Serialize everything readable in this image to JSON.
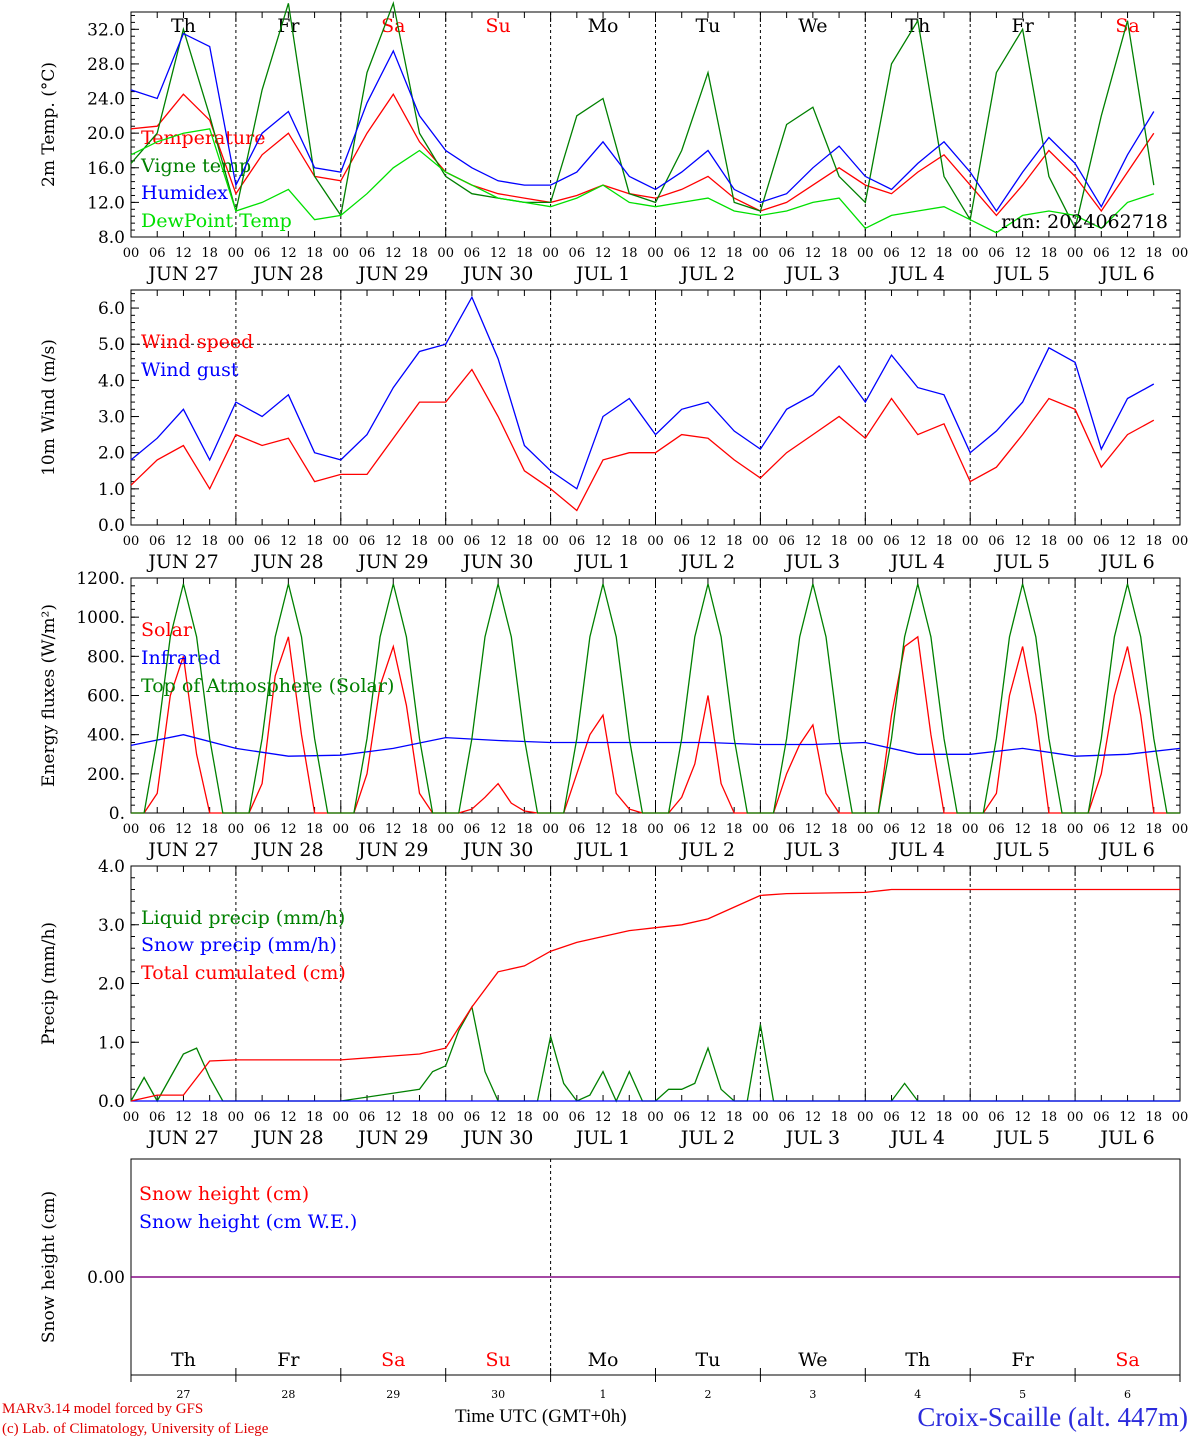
{
  "days": {
    "weekday": [
      "Th",
      "Fr",
      "Sa",
      "Su",
      "Mo",
      "Tu",
      "We",
      "Th",
      "Fr",
      "Sa"
    ],
    "weekend": [
      false,
      false,
      true,
      true,
      false,
      false,
      false,
      false,
      false,
      true
    ],
    "dates": [
      "JUN 27",
      "JUN 28",
      "JUN 29",
      "JUN 30",
      "JUL  1",
      "JUL  2",
      "JUL  3",
      "JUL  4",
      "JUL  5",
      "JUL  6"
    ],
    "day_numbers": [
      "27",
      "28",
      "29",
      "30",
      "1",
      "2",
      "3",
      "4",
      "5",
      "6"
    ],
    "hour_ticks": [
      "00",
      "06",
      "12",
      "18"
    ]
  },
  "colors": {
    "red": "#ff0000",
    "green": "#008000",
    "blue": "#0000ff",
    "lightgreen": "#00e000",
    "purple": "#800080"
  },
  "footer": {
    "credit_line1": "MARv3.14 model forced by GFS",
    "credit_line2": "(c) Lab. of Climatology, University of Liege",
    "x_title": "Time UTC (GMT+0h)",
    "station": "Croix-Scaille (alt. 447m)",
    "station_overlap": "JUL"
  },
  "chart_data": [
    {
      "type": "line",
      "ylabel": "2m Temp. (°C)",
      "ylim": [
        8.0,
        34.0
      ],
      "yticks": [
        "8.0",
        "12.0",
        "16.0",
        "20.0",
        "24.0",
        "28.0",
        "32.0"
      ],
      "annotation": "run: 2024062718",
      "series": [
        {
          "name": "Temperature",
          "color": "red",
          "x_hours": [
            0,
            6,
            12,
            18,
            24,
            30,
            36,
            42,
            48,
            54,
            60,
            66,
            72,
            78,
            84,
            90,
            96,
            102,
            108,
            114,
            120,
            126,
            132,
            138,
            144,
            150,
            156,
            162,
            168,
            174,
            180,
            186,
            192,
            198,
            204,
            210,
            216,
            222,
            228,
            234
          ],
          "values": [
            20.5,
            20.8,
            24.5,
            21.5,
            13.0,
            17.5,
            20.0,
            15.0,
            14.5,
            20.0,
            24.5,
            19.0,
            15.5,
            14.0,
            13.0,
            12.5,
            12.0,
            12.8,
            14.0,
            13.0,
            12.5,
            13.5,
            15.0,
            12.5,
            11.0,
            12.0,
            14.0,
            16.0,
            14.0,
            13.0,
            15.5,
            17.5,
            14.0,
            10.5,
            14.0,
            18.0,
            15.0,
            11.0,
            15.5,
            20.0
          ]
        },
        {
          "name": "Vigne temp",
          "color": "green",
          "x_hours": [
            0,
            6,
            12,
            18,
            24,
            30,
            36,
            42,
            48,
            54,
            60,
            66,
            72,
            78,
            84,
            90,
            96,
            102,
            108,
            114,
            120,
            126,
            132,
            138,
            144,
            150,
            156,
            162,
            168,
            174,
            180,
            186,
            192,
            198,
            204,
            210,
            216,
            222,
            228,
            234
          ],
          "values": [
            16.5,
            20.0,
            32.0,
            22.0,
            11.0,
            25.0,
            35.0,
            15.0,
            10.5,
            27.0,
            35.0,
            20.0,
            15.0,
            13.0,
            12.5,
            12.0,
            12.0,
            22.0,
            24.0,
            13.0,
            12.0,
            18.0,
            27.0,
            12.0,
            11.0,
            21.0,
            23.0,
            15.0,
            12.0,
            28.0,
            33.0,
            15.0,
            10.0,
            27.0,
            32.0,
            15.0,
            9.0,
            22.0,
            33.0,
            14.0
          ]
        },
        {
          "name": "Humidex",
          "color": "blue",
          "x_hours": [
            0,
            6,
            12,
            18,
            24,
            30,
            36,
            42,
            48,
            54,
            60,
            66,
            72,
            78,
            84,
            90,
            96,
            102,
            108,
            114,
            120,
            126,
            132,
            138,
            144,
            150,
            156,
            162,
            168,
            174,
            180,
            186,
            192,
            198,
            204,
            210,
            216,
            222,
            228,
            234
          ],
          "values": [
            25.0,
            24.0,
            31.5,
            30.0,
            14.0,
            20.0,
            22.5,
            16.0,
            15.5,
            23.5,
            29.5,
            22.0,
            18.0,
            16.0,
            14.5,
            14.0,
            14.0,
            15.5,
            19.0,
            15.0,
            13.5,
            15.5,
            18.0,
            13.5,
            12.0,
            13.0,
            16.0,
            18.5,
            15.0,
            13.5,
            16.5,
            19.0,
            15.5,
            11.0,
            15.5,
            19.5,
            16.5,
            11.5,
            17.5,
            22.5
          ]
        },
        {
          "name": "DewPoint Temp",
          "color": "lightgreen",
          "x_hours": [
            0,
            6,
            12,
            18,
            24,
            30,
            36,
            42,
            48,
            54,
            60,
            66,
            72,
            78,
            84,
            90,
            96,
            102,
            108,
            114,
            120,
            126,
            132,
            138,
            144,
            150,
            156,
            162,
            168,
            174,
            180,
            186,
            192,
            198,
            204,
            210,
            216,
            222,
            228,
            234
          ],
          "values": [
            17.5,
            19.0,
            20.0,
            20.5,
            11.0,
            12.0,
            13.5,
            10.0,
            10.5,
            13.0,
            16.0,
            18.0,
            15.5,
            14.0,
            12.5,
            12.0,
            11.5,
            12.5,
            14.0,
            12.0,
            11.5,
            12.0,
            12.5,
            11.0,
            10.5,
            11.0,
            12.0,
            12.5,
            9.0,
            10.5,
            11.0,
            11.5,
            10.0,
            8.5,
            10.5,
            11.0,
            10.5,
            9.0,
            12.0,
            13.0
          ]
        }
      ]
    },
    {
      "type": "line",
      "ylabel": "10m Wind (m/s)",
      "ylim": [
        0.0,
        6.5
      ],
      "yticks": [
        "0.0",
        "1.0",
        "2.0",
        "3.0",
        "4.0",
        "5.0",
        "6.0"
      ],
      "reference_line": 5.0,
      "series": [
        {
          "name": "Wind speed",
          "color": "red",
          "x_hours": [
            0,
            6,
            12,
            18,
            24,
            30,
            36,
            42,
            48,
            54,
            60,
            66,
            72,
            78,
            84,
            90,
            96,
            102,
            108,
            114,
            120,
            126,
            132,
            138,
            144,
            150,
            156,
            162,
            168,
            174,
            180,
            186,
            192,
            198,
            204,
            210,
            216,
            222,
            228,
            234
          ],
          "values": [
            1.1,
            1.8,
            2.2,
            1.0,
            2.5,
            2.2,
            2.4,
            1.2,
            1.4,
            1.4,
            2.4,
            3.4,
            3.4,
            4.3,
            3.0,
            1.5,
            1.0,
            0.4,
            1.8,
            2.0,
            2.0,
            2.5,
            2.4,
            1.8,
            1.3,
            2.0,
            2.5,
            3.0,
            2.4,
            3.5,
            2.5,
            2.8,
            1.2,
            1.6,
            2.5,
            3.5,
            3.2,
            1.6,
            2.5,
            2.9
          ]
        },
        {
          "name": "Wind gust",
          "color": "blue",
          "x_hours": [
            0,
            6,
            12,
            18,
            24,
            30,
            36,
            42,
            48,
            54,
            60,
            66,
            72,
            78,
            84,
            90,
            96,
            102,
            108,
            114,
            120,
            126,
            132,
            138,
            144,
            150,
            156,
            162,
            168,
            174,
            180,
            186,
            192,
            198,
            204,
            210,
            216,
            222,
            228,
            234
          ],
          "values": [
            1.8,
            2.4,
            3.2,
            1.8,
            3.4,
            3.0,
            3.6,
            2.0,
            1.8,
            2.5,
            3.8,
            4.8,
            5.0,
            6.3,
            4.6,
            2.2,
            1.5,
            1.0,
            3.0,
            3.5,
            2.5,
            3.2,
            3.4,
            2.6,
            2.1,
            3.2,
            3.6,
            4.4,
            3.4,
            4.7,
            3.8,
            3.6,
            2.0,
            2.6,
            3.4,
            4.9,
            4.5,
            2.1,
            3.5,
            3.9
          ]
        }
      ]
    },
    {
      "type": "line",
      "ylabel": "Energy fluxes (W/m²)",
      "ylim": [
        0,
        1200
      ],
      "yticks": [
        "0.",
        "200.",
        "400.",
        "600.",
        "800.",
        "1000.",
        "1200."
      ],
      "series": [
        {
          "name": "Solar",
          "color": "red",
          "x_hours": [
            0,
            3,
            6,
            9,
            12,
            15,
            18,
            21,
            24,
            27,
            30,
            33,
            36,
            39,
            42,
            45,
            48,
            51,
            54,
            57,
            60,
            63,
            66,
            69,
            72,
            75,
            78,
            81,
            84,
            87,
            90,
            93,
            96,
            99,
            102,
            105,
            108,
            111,
            114,
            117,
            120,
            123,
            126,
            129,
            132,
            135,
            138,
            141,
            144,
            147,
            150,
            153,
            156,
            159,
            162,
            165,
            168,
            171,
            174,
            177,
            180,
            183,
            186,
            189,
            192,
            195,
            198,
            201,
            204,
            207,
            210,
            213,
            216,
            219,
            222,
            225,
            228,
            231,
            234,
            237,
            240
          ],
          "values": [
            0,
            0,
            100,
            600,
            800,
            300,
            0,
            0,
            0,
            0,
            150,
            700,
            900,
            400,
            0,
            0,
            0,
            0,
            200,
            650,
            850,
            550,
            100,
            0,
            0,
            0,
            20,
            80,
            150,
            50,
            10,
            0,
            0,
            0,
            200,
            400,
            500,
            100,
            20,
            0,
            0,
            0,
            80,
            250,
            600,
            150,
            0,
            0,
            0,
            0,
            200,
            350,
            450,
            100,
            0,
            0,
            0,
            0,
            500,
            850,
            900,
            400,
            0,
            0,
            0,
            0,
            100,
            600,
            850,
            500,
            0,
            0,
            0,
            0,
            200,
            600,
            850,
            500,
            0,
            0,
            0
          ]
        },
        {
          "name": "Infrared",
          "color": "blue",
          "x_hours": [
            0,
            12,
            24,
            36,
            48,
            60,
            72,
            84,
            96,
            108,
            120,
            132,
            144,
            156,
            168,
            180,
            192,
            204,
            216,
            228,
            240
          ],
          "values": [
            345,
            400,
            330,
            290,
            295,
            330,
            385,
            370,
            360,
            360,
            360,
            360,
            350,
            350,
            360,
            300,
            300,
            330,
            290,
            300,
            330
          ]
        },
        {
          "name": "Top of Atmosphere (Solar)",
          "color": "green",
          "x_hours": [
            0,
            3,
            6,
            9,
            12,
            15,
            18,
            21,
            24
          ],
          "values": [
            0,
            0,
            380,
            900,
            1170,
            900,
            380,
            0,
            0
          ],
          "repeats_daily": true
        }
      ]
    },
    {
      "type": "line",
      "ylabel": "Precip (mm/h)",
      "ylim": [
        0.0,
        4.0
      ],
      "yticks": [
        "0.0",
        "1.0",
        "2.0",
        "3.0",
        "4.0"
      ],
      "series": [
        {
          "name": "Liquid precip (mm/h)",
          "color": "green",
          "x_hours": [
            0,
            3,
            6,
            9,
            12,
            15,
            18,
            21,
            24,
            48,
            66,
            69,
            72,
            75,
            78,
            81,
            84,
            87,
            90,
            93,
            96,
            99,
            102,
            105,
            108,
            111,
            114,
            117,
            120,
            123,
            126,
            129,
            132,
            135,
            138,
            141,
            144,
            147,
            150,
            168,
            174,
            177,
            180,
            240
          ],
          "values": [
            0,
            0.4,
            0,
            0.4,
            0.8,
            0.9,
            0.4,
            0,
            0,
            0,
            0.2,
            0.5,
            0.6,
            1.2,
            1.6,
            0.5,
            0,
            0,
            0,
            0,
            1.1,
            0.3,
            0,
            0.1,
            0.5,
            0,
            0.5,
            0,
            0,
            0.2,
            0.2,
            0.3,
            0.9,
            0.2,
            0,
            0,
            1.3,
            0,
            0,
            0,
            0,
            0.3,
            0,
            0
          ]
        },
        {
          "name": "Snow precip (mm/h)",
          "color": "blue",
          "x_hours": [
            0,
            240
          ],
          "values": [
            0,
            0
          ]
        },
        {
          "name": "Total cumulated (cm)",
          "color": "red",
          "x_hours": [
            0,
            6,
            12,
            18,
            24,
            48,
            66,
            72,
            78,
            84,
            90,
            96,
            102,
            108,
            114,
            120,
            126,
            132,
            138,
            144,
            150,
            168,
            174,
            180,
            240
          ],
          "values": [
            0.0,
            0.1,
            0.1,
            0.68,
            0.7,
            0.7,
            0.8,
            0.9,
            1.6,
            2.2,
            2.3,
            2.55,
            2.7,
            2.8,
            2.9,
            2.95,
            3.0,
            3.1,
            3.3,
            3.5,
            3.53,
            3.55,
            3.6,
            3.6,
            3.6
          ]
        }
      ]
    },
    {
      "type": "line",
      "ylabel": "Snow height (cm)",
      "yticks": [
        "0.00"
      ],
      "series": [
        {
          "name": "Snow height (cm)",
          "color": "red",
          "x_hours": [
            0,
            240
          ],
          "values": [
            0,
            0
          ]
        },
        {
          "name": "Snow height (cm W.E.)",
          "color": "blue",
          "x_hours": [
            0,
            240
          ],
          "values": [
            0,
            0
          ]
        }
      ]
    }
  ]
}
